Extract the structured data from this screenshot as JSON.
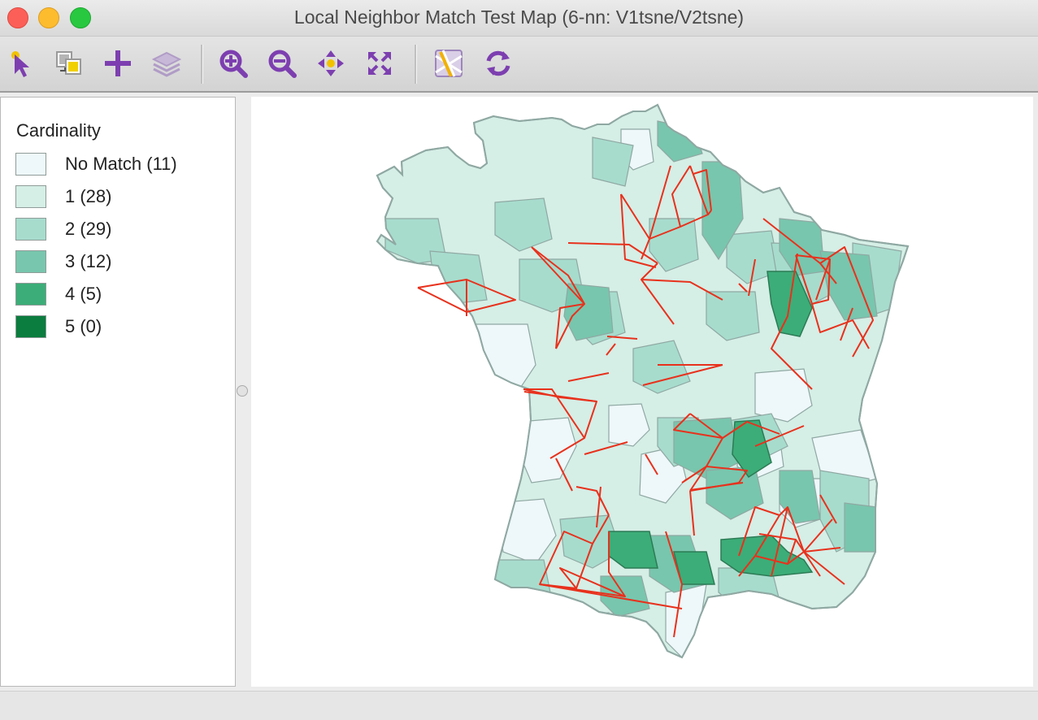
{
  "window": {
    "title": "Local Neighbor Match Test Map (6-nn: V1tsne/V2tsne)"
  },
  "toolbar": {
    "tools": [
      {
        "name": "select-pointer-icon"
      },
      {
        "name": "copy-image-icon"
      },
      {
        "name": "add-variable-icon"
      },
      {
        "name": "layers-icon"
      },
      {
        "name": "zoom-in-icon"
      },
      {
        "name": "zoom-out-icon"
      },
      {
        "name": "pan-icon"
      },
      {
        "name": "fit-extent-icon"
      },
      {
        "name": "basemap-icon"
      },
      {
        "name": "refresh-icon"
      }
    ],
    "icon_color": "#7d3fb0"
  },
  "legend": {
    "title": "Cardinality",
    "items": [
      {
        "label": "No Match (11)",
        "color": "#eef7fa"
      },
      {
        "label": "1 (28)",
        "color": "#d5eee6"
      },
      {
        "label": "2 (29)",
        "color": "#a7dccd"
      },
      {
        "label": "3 (12)",
        "color": "#78c6ad"
      },
      {
        "label": "4 (5)",
        "color": "#3cad78"
      },
      {
        "label": "5 (0)",
        "color": "#0b7d3e"
      }
    ]
  },
  "map": {
    "link_color": "#e8311c",
    "border_color": "#8fa8a2"
  }
}
